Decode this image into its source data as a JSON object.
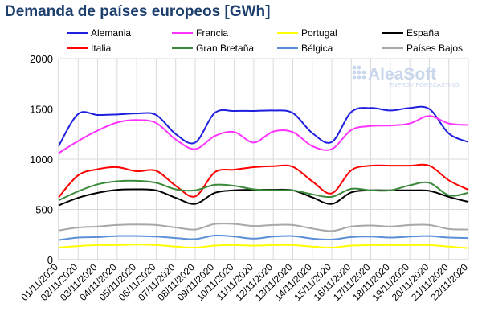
{
  "chart_data": {
    "type": "line",
    "title": "Demanda de países europeos [GWh]",
    "xlabel": "",
    "ylabel": "",
    "ylim": [
      0,
      2000
    ],
    "yticks": [
      "0",
      "500",
      "1000",
      "1500",
      "2000"
    ],
    "grid": true,
    "legend_position": "top",
    "categories": [
      "01/11/2020",
      "02/11/2020",
      "03/11/2020",
      "04/11/2020",
      "05/11/2020",
      "06/11/2020",
      "07/11/2020",
      "08/11/2020",
      "09/11/2020",
      "10/11/2020",
      "11/11/2020",
      "12/11/2020",
      "13/11/2020",
      "14/11/2020",
      "15/11/2020",
      "16/11/2020",
      "17/11/2020",
      "18/11/2020",
      "19/11/2020",
      "20/11/2020",
      "21/11/2020",
      "22/11/2020"
    ],
    "series": [
      {
        "name": "Alemania",
        "color": "#1f1fe0",
        "values": [
          1130,
          1450,
          1440,
          1445,
          1455,
          1440,
          1250,
          1165,
          1460,
          1480,
          1480,
          1485,
          1460,
          1260,
          1170,
          1470,
          1510,
          1485,
          1510,
          1500,
          1255,
          1170
        ]
      },
      {
        "name": "Francia",
        "color": "#ff33ff",
        "values": [
          1060,
          1180,
          1285,
          1365,
          1390,
          1360,
          1195,
          1100,
          1230,
          1270,
          1165,
          1275,
          1270,
          1130,
          1100,
          1290,
          1330,
          1335,
          1355,
          1430,
          1355,
          1340
        ]
      },
      {
        "name": "Portugal",
        "color": "#ffff00",
        "values": [
          120,
          135,
          145,
          145,
          150,
          145,
          130,
          120,
          140,
          145,
          140,
          145,
          145,
          130,
          120,
          140,
          145,
          145,
          145,
          145,
          130,
          115
        ]
      },
      {
        "name": "España",
        "color": "#000000",
        "values": [
          540,
          615,
          665,
          695,
          700,
          690,
          615,
          555,
          665,
          690,
          695,
          695,
          690,
          620,
          555,
          670,
          690,
          690,
          690,
          685,
          625,
          575
        ]
      },
      {
        "name": "Italia",
        "color": "#ff0000",
        "values": [
          620,
          840,
          900,
          920,
          880,
          885,
          735,
          630,
          870,
          895,
          920,
          930,
          925,
          780,
          660,
          890,
          935,
          935,
          935,
          935,
          790,
          695
        ]
      },
      {
        "name": "Gran Bretaña",
        "color": "#3a8a3a",
        "values": [
          590,
          680,
          750,
          780,
          785,
          765,
          700,
          690,
          745,
          735,
          700,
          690,
          690,
          650,
          625,
          705,
          690,
          690,
          740,
          765,
          640,
          665
        ]
      },
      {
        "name": "Bélgica",
        "color": "#5b8fd6",
        "values": [
          195,
          220,
          225,
          235,
          235,
          230,
          215,
          205,
          240,
          230,
          210,
          230,
          235,
          210,
          200,
          225,
          230,
          220,
          230,
          235,
          220,
          215
        ]
      },
      {
        "name": "Países Bajos",
        "color": "#a8a8a8",
        "values": [
          290,
          320,
          330,
          345,
          350,
          345,
          320,
          300,
          355,
          355,
          335,
          345,
          345,
          310,
          285,
          330,
          340,
          330,
          345,
          345,
          305,
          300
        ]
      }
    ]
  },
  "watermark": {
    "brand": "AleaSoft",
    "tagline": "ENERGY FORECASTING"
  }
}
